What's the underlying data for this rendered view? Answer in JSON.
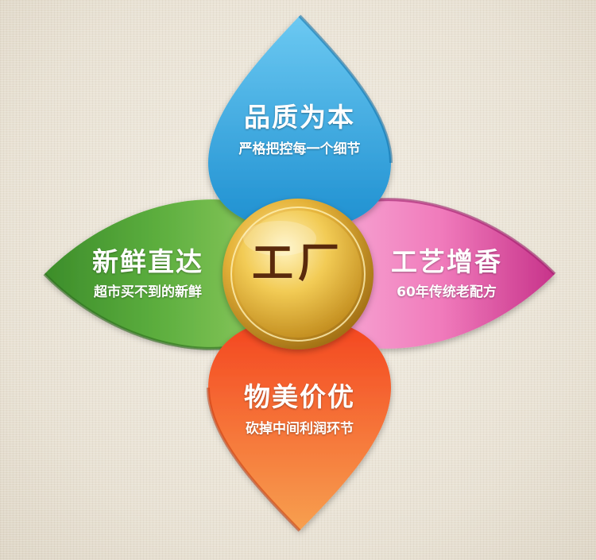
{
  "center": {
    "label": "工厂"
  },
  "petals": {
    "top": {
      "title": "品质为本",
      "subtitle": "严格把控每一个细节",
      "color": "#2fa2dc"
    },
    "left": {
      "title": "新鲜直达",
      "subtitle": "超市买不到的新鲜",
      "color": "#5aaa3c"
    },
    "right": {
      "title": "工艺增香",
      "subtitle": "60年传统老配方",
      "color": "#ef6fb5"
    },
    "bottom": {
      "title": "物美价优",
      "subtitle": "砍掉中间利润环节",
      "color": "#f2652a"
    }
  }
}
